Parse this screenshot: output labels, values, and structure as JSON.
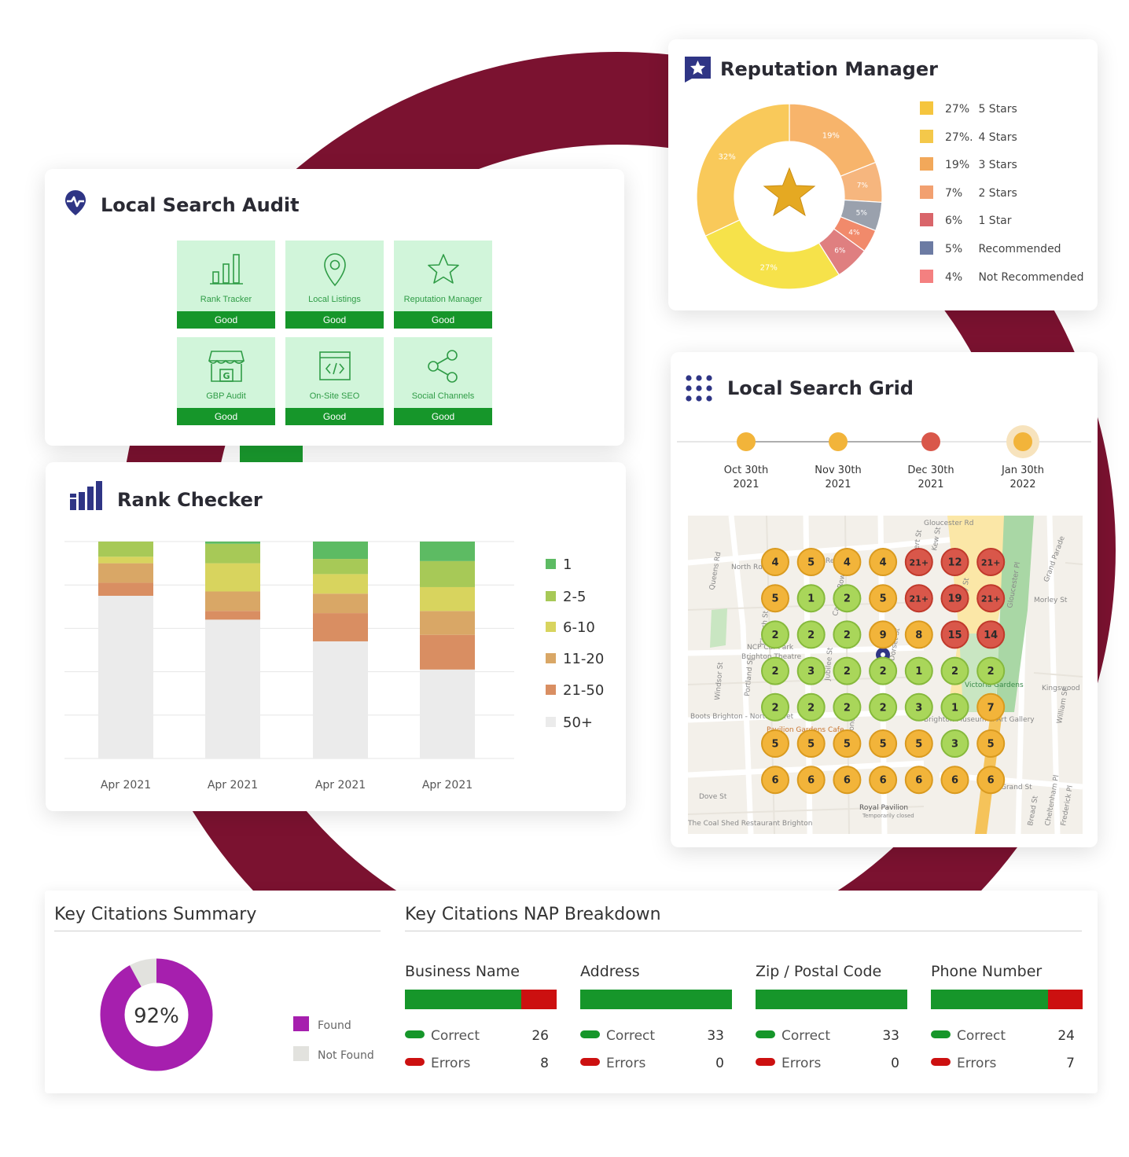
{
  "colors": {
    "brand": "#7b1230",
    "good_green": "#16962a",
    "tile_bg": "#d1f5da",
    "error_red": "#cc1010",
    "found_purple": "#a61fae",
    "nav_blue": "#2f3585"
  },
  "audit": {
    "title": "Local Search Audit",
    "tiles": [
      {
        "label": "Rank Tracker",
        "status": "Good",
        "icon": "bar-chart-icon"
      },
      {
        "label": "Local Listings",
        "status": "Good",
        "icon": "map-pin-icon"
      },
      {
        "label": "Reputation Manager",
        "status": "Good",
        "icon": "star-icon"
      },
      {
        "label": "GBP Audit",
        "status": "Good",
        "icon": "storefront-icon"
      },
      {
        "label": "On-Site SEO",
        "status": "Good",
        "icon": "code-window-icon"
      },
      {
        "label": "Social Channels",
        "status": "Good",
        "icon": "share-icon"
      }
    ]
  },
  "reputation": {
    "title": "Reputation Manager",
    "legend": [
      {
        "pct": "27%",
        "label": "5 Stars",
        "color": "#f5c53e"
      },
      {
        "pct": "27%.",
        "label": "4 Stars",
        "color": "#f4c84a"
      },
      {
        "pct": "19%",
        "label": "3 Stars",
        "color": "#f2a85a"
      },
      {
        "pct": "7%",
        "label": "2 Stars",
        "color": "#f2a070"
      },
      {
        "pct": "6%",
        "label": "1 Star",
        "color": "#d9656a"
      },
      {
        "pct": "5%",
        "label": "Recommended",
        "color": "#6c7ba3"
      },
      {
        "pct": "4%",
        "label": "Not Recommended",
        "color": "#f48080"
      }
    ]
  },
  "chart_data": {
    "type": "bar",
    "stacked": true,
    "title": "Rank Checker",
    "categories": [
      "Apr 2021",
      "Apr 2021",
      "Apr 2021",
      "Apr 2021"
    ],
    "series": [
      {
        "name": "1",
        "color": "#5dbb63",
        "values": [
          0,
          1,
          8,
          9
        ]
      },
      {
        "name": "2-5",
        "color": "#a7c957",
        "values": [
          7,
          9,
          7,
          12
        ]
      },
      {
        "name": "6-10",
        "color": "#d8d45e",
        "values": [
          3,
          13,
          9,
          11
        ]
      },
      {
        "name": "11-20",
        "color": "#d9a766",
        "values": [
          9,
          9,
          9,
          11
        ]
      },
      {
        "name": "21-50",
        "color": "#d98e62",
        "values": [
          6,
          4,
          13,
          16
        ]
      },
      {
        "name": "50+",
        "color": "#ebebeb",
        "values": [
          75,
          64,
          54,
          41
        ]
      }
    ],
    "ylim": [
      0,
      100
    ],
    "legend_position": "right",
    "grid": true
  },
  "grid": {
    "title": "Local Search Grid",
    "dates": [
      {
        "line1": "Oct 30th",
        "line2": "2021"
      },
      {
        "line1": "Nov 30th",
        "line2": "2021"
      },
      {
        "line1": "Dec 30th",
        "line2": "2021"
      },
      {
        "line1": "Jan 30th",
        "line2": "2022"
      }
    ],
    "ranks": [
      [
        "4",
        "5",
        "4",
        "4",
        "21+",
        "12",
        "21+"
      ],
      [
        "5",
        "1",
        "2",
        "5",
        "21+",
        "19",
        "21+"
      ],
      [
        "2",
        "2",
        "2",
        "9",
        "8",
        "15",
        "14"
      ],
      [
        "2",
        "3",
        "2",
        "2",
        "1",
        "2",
        "2"
      ],
      [
        "2",
        "2",
        "2",
        "2",
        "3",
        "1",
        "7"
      ],
      [
        "5",
        "5",
        "5",
        "5",
        "5",
        "3",
        "5"
      ],
      [
        "6",
        "6",
        "6",
        "6",
        "6",
        "6",
        "6"
      ]
    ],
    "map_labels": [
      "Gloucester Rd",
      "North Rd",
      "Queens Rd",
      "Grand Parade",
      "Morley St",
      "NCP Car Park",
      "Brighton Theatre",
      "Victoria Gardens",
      "Kingswood St",
      "Boots Brighton - North Street",
      "Pavilion Gardens Cafe",
      "Brighton Museum & Art Gallery",
      "William St",
      "Royal Pavilion",
      "Temporarily closed",
      "The Coal Shed Restaurant Brighton",
      "Church St",
      "Bond St",
      "Windsor St",
      "Portland St",
      "Jubilee St",
      "Grand St",
      "Dove St",
      "Gloucester Pl",
      "Regent St",
      "Robert St",
      "Kew St",
      "Tidy St",
      "Dorset St",
      "Cheltenham Pl",
      "Bread St",
      "Frederick Pl",
      "Carlton Row"
    ]
  },
  "citations": {
    "summary_title": "Key Citations Summary",
    "found_pct": "92%",
    "found_fraction": 0.92,
    "legend": [
      {
        "label": "Found",
        "color": "#a61fae"
      },
      {
        "label": "Not Found",
        "color": "#e2e2de"
      }
    ],
    "nap_title": "Key Citations NAP Breakdown",
    "correct_label": "Correct",
    "errors_label": "Errors",
    "nap": [
      {
        "name": "Business Name",
        "correct": "26",
        "errors": "8",
        "correct_n": 26,
        "errors_n": 8
      },
      {
        "name": "Address",
        "correct": "33",
        "errors": "0",
        "correct_n": 33,
        "errors_n": 0
      },
      {
        "name": "Zip / Postal Code",
        "correct": "33",
        "errors": "0",
        "correct_n": 33,
        "errors_n": 0
      },
      {
        "name": "Phone Number",
        "correct": "24",
        "errors": "7",
        "correct_n": 24,
        "errors_n": 7
      }
    ]
  }
}
